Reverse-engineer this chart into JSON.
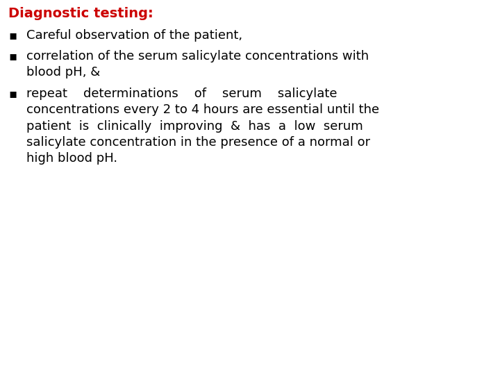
{
  "title": "Diagnostic testing:",
  "title_color": "#cc0000",
  "title_fontsize": 14,
  "background_color": "#ffffff",
  "text_color": "#000000",
  "bullet_char": "▪",
  "bullet_item1": "Careful observation of the patient,",
  "bullet_item2": "correlation of the serum salicylate concentrations with\nblood pH, &",
  "bullet_item3_line1": "repeat    determinations    of    serum    salicylate",
  "bullet_item3_line2": "concentrations every 2 to 4 hours are essential until the",
  "bullet_item3_line3": "patient  is  clinically  improving  &  has  a  low  serum",
  "bullet_item3_line4": "salicylate concentration in the presence of a normal or",
  "bullet_item3_line5": "high blood pH.",
  "font_family": "DejaVu Sans",
  "body_fontsize": 13.0
}
